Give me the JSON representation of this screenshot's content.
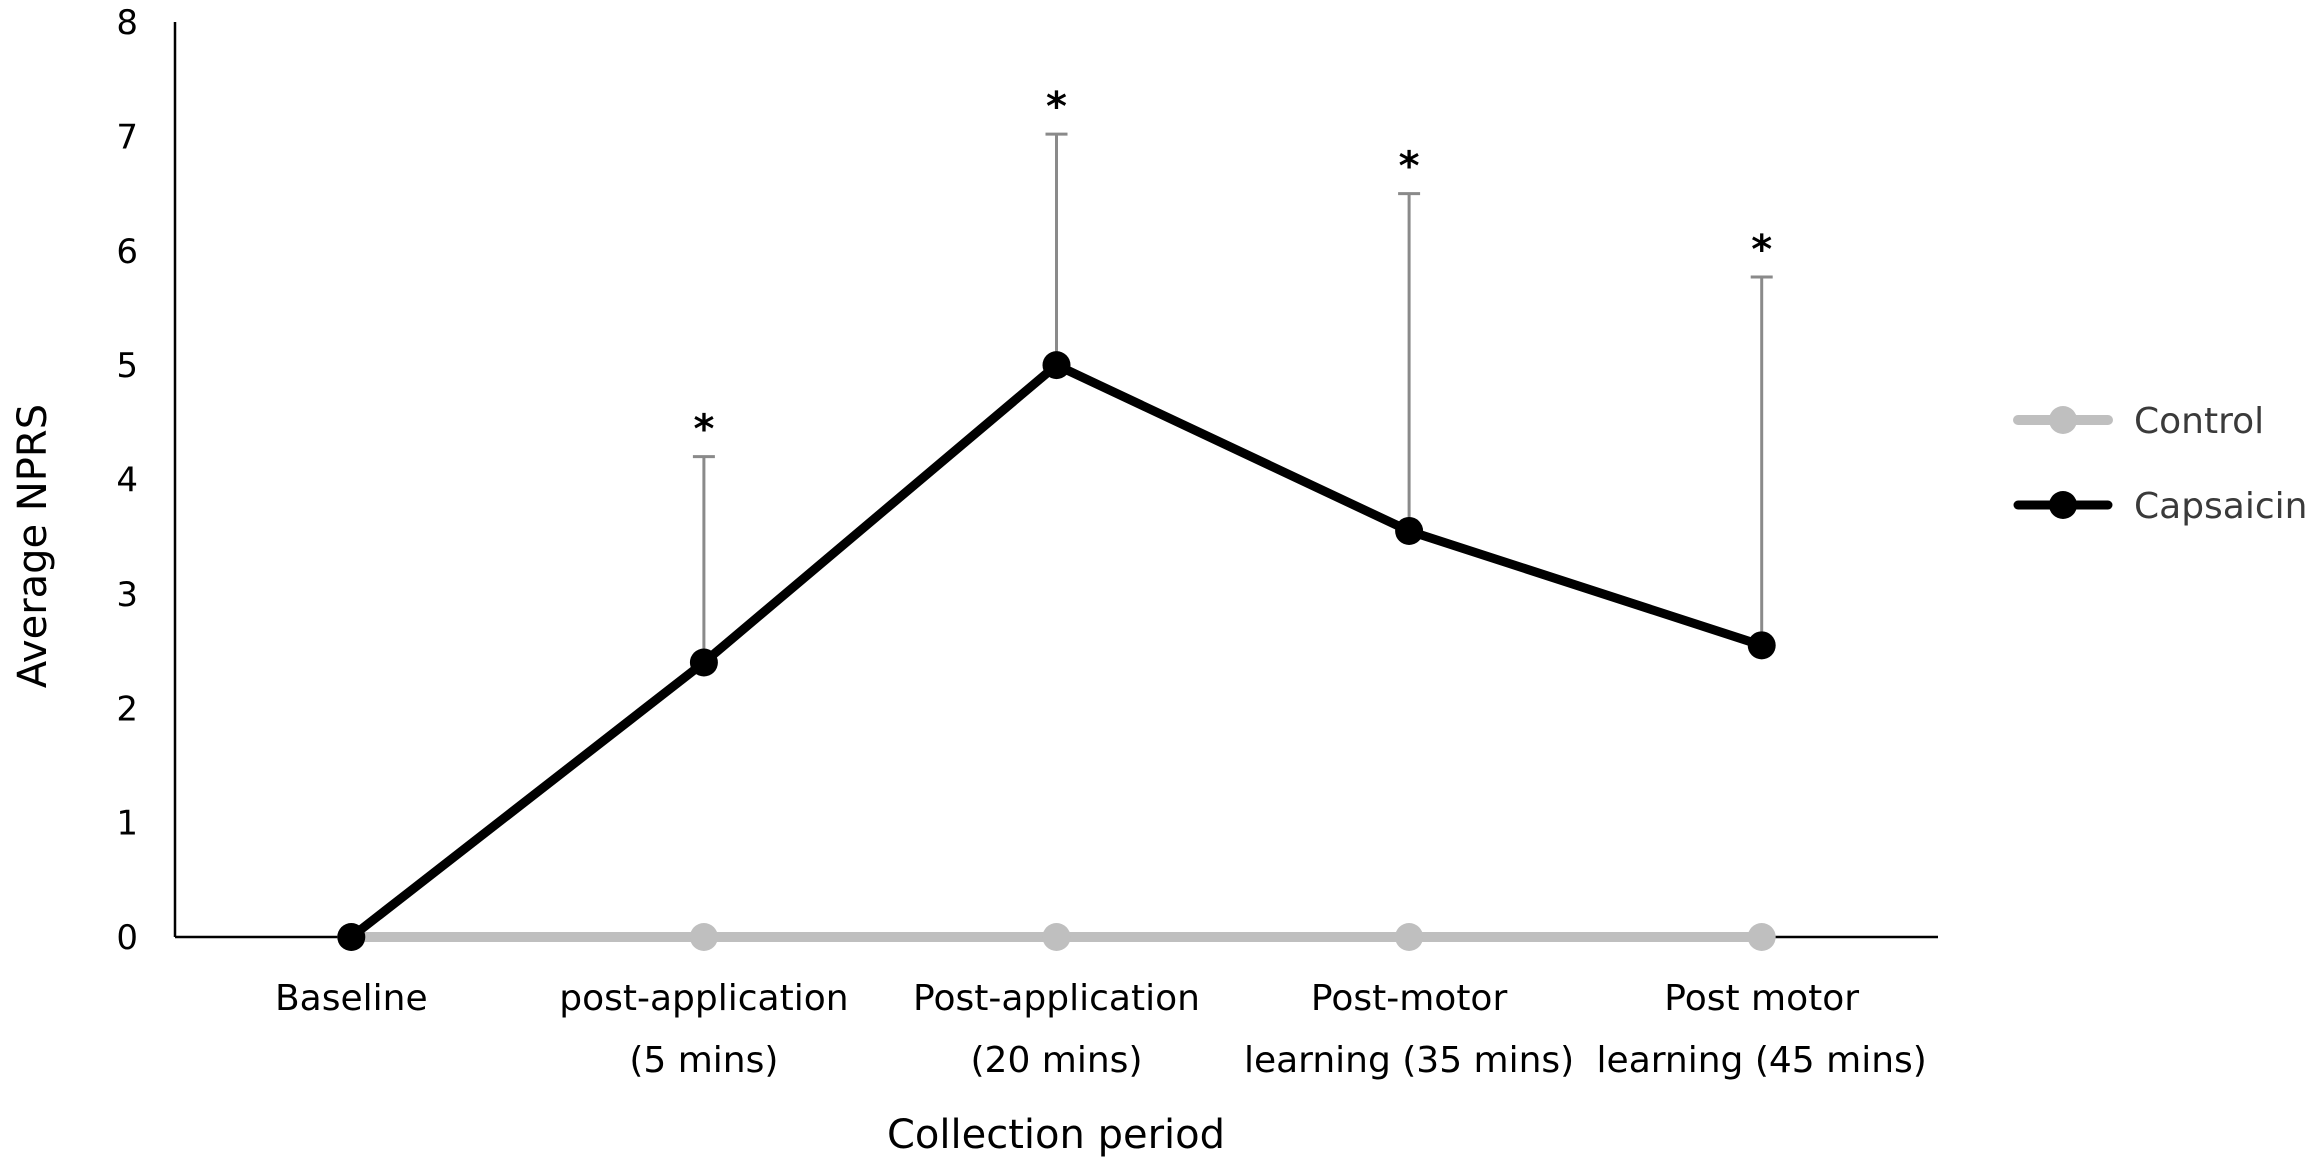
{
  "chart_data": {
    "type": "line",
    "title": "",
    "xlabel": "Collection period",
    "ylabel": "Average NPRS",
    "ylim": [
      0,
      8
    ],
    "yticks": [
      "0",
      "1",
      "2",
      "3",
      "4",
      "5",
      "6",
      "7",
      "8"
    ],
    "categories": [
      [
        "Baseline"
      ],
      [
        "post-application",
        "(5 mins)"
      ],
      [
        "Post-application",
        "(20 mins)"
      ],
      [
        "Post-motor",
        "learning (35 mins)"
      ],
      [
        "Post motor",
        "learning (45 mins)"
      ]
    ],
    "series": [
      {
        "name": "Control",
        "color": "#bfbfbf",
        "values": [
          0,
          0,
          0,
          0,
          0
        ]
      },
      {
        "name": "Capsaicin",
        "color": "#000000",
        "values": [
          0,
          2.4,
          5.0,
          3.55,
          2.55
        ],
        "error_upper": [
          null,
          4.2,
          7.02,
          6.5,
          5.77
        ],
        "significance": [
          "",
          "*",
          "*",
          "*",
          "*"
        ]
      }
    ],
    "legend_position": "right",
    "grid": false
  }
}
